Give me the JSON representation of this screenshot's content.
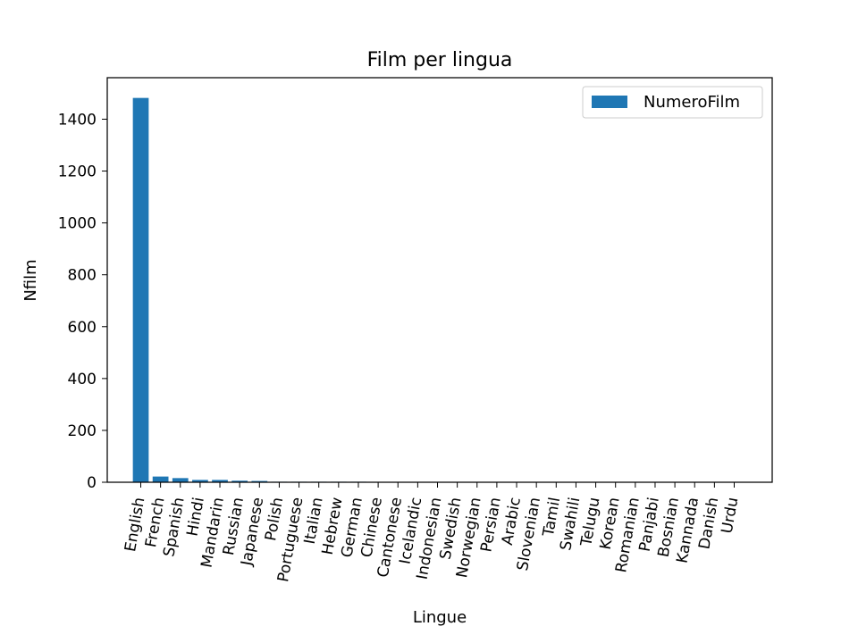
{
  "chart_data": {
    "type": "bar",
    "title": "Film per lingua",
    "xlabel": "Lingue",
    "ylabel": "Nfilm",
    "ylim": [
      0,
      1560
    ],
    "yticks": [
      0,
      200,
      400,
      600,
      800,
      1000,
      1200,
      1400
    ],
    "grid": false,
    "legend_position": "top-right",
    "categories": [
      "English",
      "French",
      "Spanish",
      "Hindi",
      "Mandarin",
      "Russian",
      "Japanese",
      "Polish",
      "Portuguese",
      "Italian",
      "Hebrew",
      "German",
      "Chinese",
      "Cantonese",
      "Icelandic",
      "Indonesian",
      "Swedish",
      "Norwegian",
      "Persian",
      "Arabic",
      "Slovenian",
      "Tamil",
      "Swahili",
      "Telugu",
      "Korean",
      "Romanian",
      "Panjabi",
      "Bosnian",
      "Kannada",
      "Danish",
      "Urdu"
    ],
    "series": [
      {
        "name": "NumeroFilm",
        "color": "#1f77b4",
        "values": [
          1482,
          22,
          16,
          9,
          9,
          6,
          5,
          2,
          2,
          2,
          2,
          2,
          1,
          1,
          1,
          1,
          1,
          1,
          1,
          1,
          1,
          1,
          1,
          1,
          1,
          1,
          1,
          1,
          1,
          1,
          1
        ]
      }
    ]
  }
}
